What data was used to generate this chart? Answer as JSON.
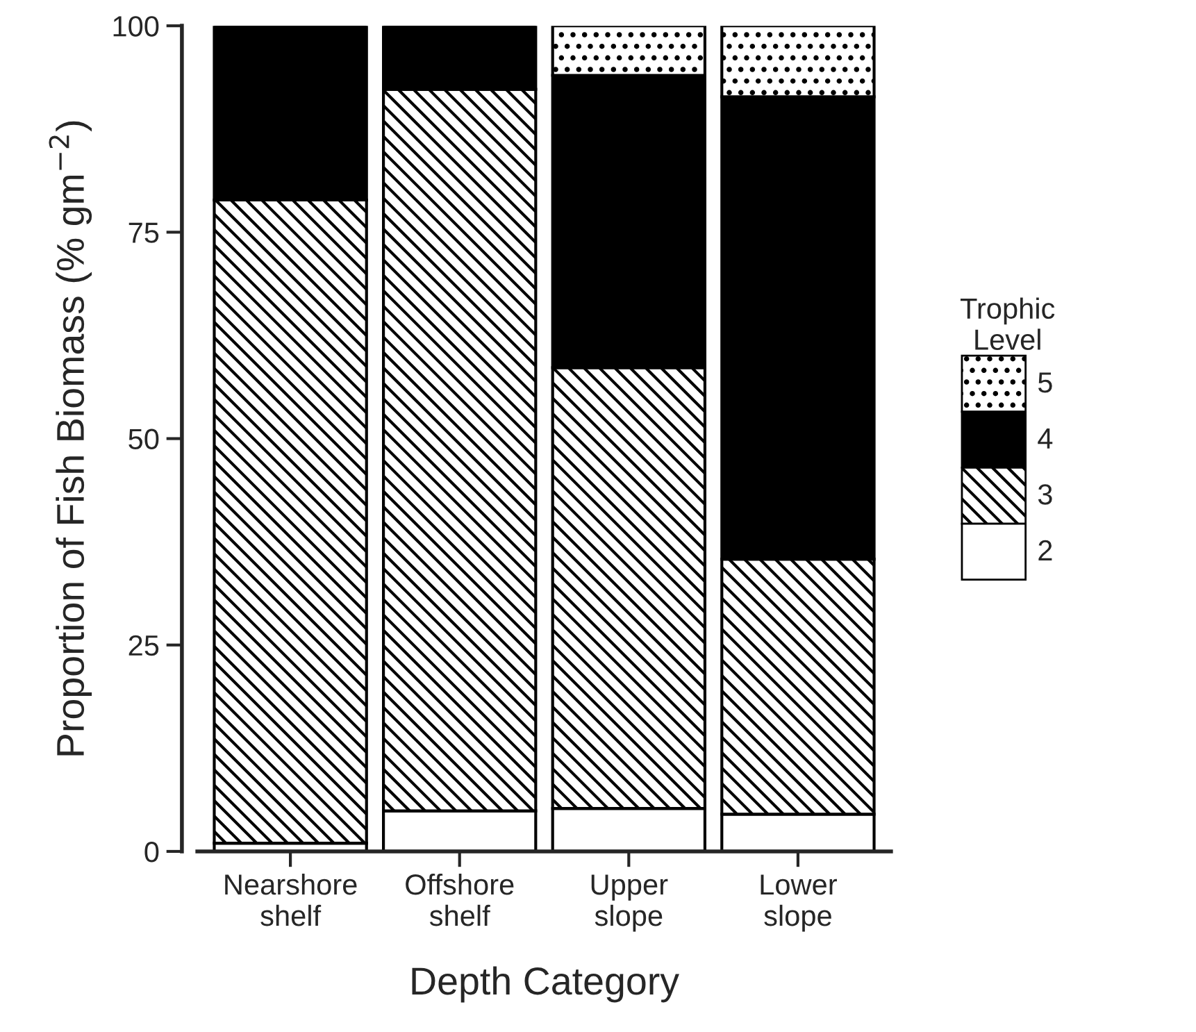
{
  "chart_data": {
    "type": "bar",
    "stacked": true,
    "xlabel": "Depth Category",
    "ylabel": "Proportion of Fish Biomass (% gm$^{−2}$)",
    "legend_title": "Trophic\nLevel",
    "legend": "right",
    "categories": [
      "Nearshore\nshelf",
      "Offshore\nshelf",
      "Upper\nslope",
      "Lower\nslope"
    ],
    "ylim": [
      0,
      100
    ],
    "yticks": [
      0,
      25,
      50,
      75,
      100
    ],
    "grid": false,
    "series": [
      {
        "name": "2",
        "color": "#ffffff",
        "values": [
          1.0,
          4.9,
          5.2,
          4.5
        ]
      },
      {
        "name": "3",
        "color": "#000000",
        "values": [
          77.9,
          87.4,
          53.4,
          30.9
        ]
      },
      {
        "name": "4",
        "color": "#000000",
        "values": [
          21.1,
          7.7,
          35.4,
          56.0
        ]
      },
      {
        "name": "5",
        "color": "#000000",
        "values": [
          0,
          0,
          6.0,
          8.6
        ]
      }
    ]
  }
}
